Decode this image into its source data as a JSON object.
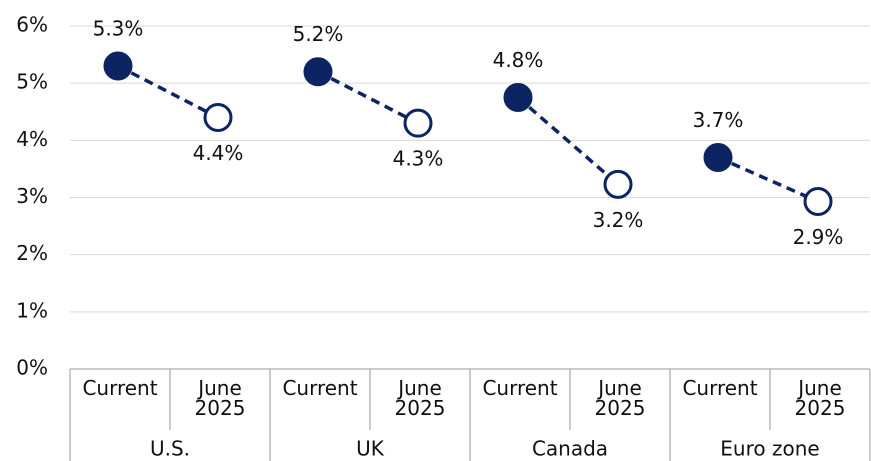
{
  "chart_data": {
    "type": "dumbbell",
    "categories": [
      "U.S.",
      "UK",
      "Canada",
      "Euro zone"
    ],
    "series": [
      {
        "name": "Current",
        "color": "#0c2461",
        "filled": true,
        "values": [
          5.3,
          5.2,
          4.75,
          3.7
        ],
        "value_labels": [
          "5.3%",
          "5.2%",
          "4.8%",
          "3.7%"
        ]
      },
      {
        "name": "June 2025",
        "color": "#0c2461",
        "filled": false,
        "values": [
          4.4,
          4.3,
          3.23,
          2.93
        ],
        "value_labels": [
          "4.4%",
          "4.3%",
          "3.2%",
          "2.9%"
        ]
      }
    ],
    "ylim": [
      0,
      6
    ],
    "yticks": [
      {
        "value": 0,
        "label": "0%"
      },
      {
        "value": 1,
        "label": "1%"
      },
      {
        "value": 2,
        "label": "2%"
      },
      {
        "value": 3,
        "label": "3%"
      },
      {
        "value": 4,
        "label": "4%"
      },
      {
        "value": 5,
        "label": "5%"
      },
      {
        "value": 6,
        "label": "6%"
      }
    ],
    "grid": true
  }
}
